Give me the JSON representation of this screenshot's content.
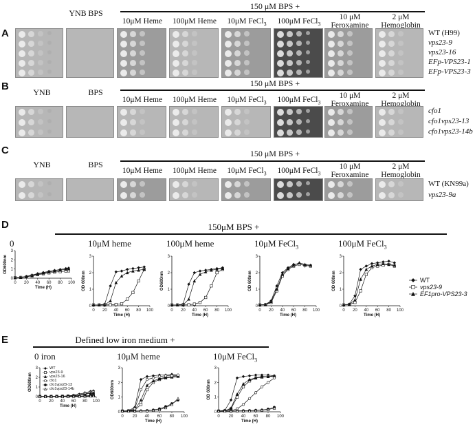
{
  "panels": {
    "A": {
      "letter": "A",
      "header": "150  μM BPS +",
      "left_labels": [
        "YNB",
        "BPS"
      ],
      "conditions": [
        "10μM Heme",
        "100μM Heme",
        "10μM FeCl3",
        "100μM FeCl3",
        "10 μM Feroxamine",
        "2 μM Hemoglobin"
      ],
      "strains": [
        "WT (H99)",
        "vps23-9",
        "vps23-16",
        "EFp-VPS23-1",
        "EFp-VPS23-3"
      ]
    },
    "B": {
      "letter": "B",
      "header": "150  μM BPS +",
      "left_labels": [
        "YNB",
        "BPS"
      ],
      "conditions": [
        "10μM Heme",
        "100μM Heme",
        "10μM FeCl3",
        "100μM FeCl3",
        "10 μM Feroxamine",
        "2 μM Hemoglobin"
      ],
      "strains": [
        "cfo1",
        "cfo1vps23-13",
        "cfo1vps23-14b"
      ]
    },
    "C": {
      "letter": "C",
      "header": "150  μM BPS +",
      "left_labels": [
        "YNB",
        "BPS"
      ],
      "conditions": [
        "10μM Heme",
        "100μM Heme",
        "10μM FeCl3",
        "100μM FeCl3",
        "10 μM Feroxamine",
        "2 μM Hemoglobin"
      ],
      "strains": [
        "WT (KN99a)",
        "vps23-9a"
      ]
    },
    "D": {
      "letter": "D",
      "header": "150μM BPS +",
      "graph_titles": [
        "0",
        "10μM heme",
        "100μM heme",
        "10μM FeCl3",
        "100μM FeCl3"
      ],
      "legend": [
        "WT",
        "vps23-9",
        "EF1pro-VPS23-3"
      ],
      "xlabel": "Time (H)",
      "ylabel": "OD600nm",
      "ylabel_alt": "OD 600nm"
    },
    "E": {
      "letter": "E",
      "header": "Defined low iron medium +",
      "graph_titles": [
        "0 iron",
        "10μM heme",
        "10μM FeCl3"
      ],
      "legend": [
        "WT",
        "vps23-9",
        "vps23-16",
        "cfo1",
        "cfo1vps23-13",
        "cfo1vps23-14b"
      ],
      "xlabel": "Time (H)",
      "ylabel": "OD600nm",
      "ylabel_alt": "OD 600nm"
    }
  },
  "chart_data": [
    {
      "type": "line",
      "title": "0",
      "xlabel": "Time (H)",
      "ylabel": "OD600nm",
      "xlim": [
        0,
        100
      ],
      "ylim": [
        0,
        3
      ],
      "series": [
        {
          "name": "WT",
          "x": [
            0,
            10,
            20,
            30,
            40,
            50,
            60,
            70,
            80,
            90,
            95
          ],
          "y": [
            0.05,
            0.1,
            0.2,
            0.35,
            0.5,
            0.62,
            0.75,
            0.85,
            0.95,
            1.05,
            1.1
          ]
        },
        {
          "name": "vps23-9",
          "x": [
            0,
            10,
            20,
            30,
            40,
            50,
            60,
            70,
            80,
            90,
            95
          ],
          "y": [
            0.05,
            0.08,
            0.15,
            0.25,
            0.38,
            0.48,
            0.58,
            0.66,
            0.72,
            0.78,
            0.8
          ]
        },
        {
          "name": "EF1pro-VPS23-3",
          "x": [
            0,
            10,
            20,
            30,
            40,
            50,
            60,
            70,
            80,
            90,
            95
          ],
          "y": [
            0.05,
            0.1,
            0.18,
            0.3,
            0.45,
            0.56,
            0.68,
            0.78,
            0.88,
            0.98,
            1.02
          ]
        }
      ]
    },
    {
      "type": "line",
      "title": "10μM heme",
      "xlabel": "Time (H)",
      "ylabel": "OD 600nm",
      "xlim": [
        0,
        100
      ],
      "ylim": [
        0,
        3
      ],
      "series": [
        {
          "name": "WT",
          "x": [
            0,
            10,
            20,
            30,
            40,
            50,
            60,
            70,
            80,
            90
          ],
          "y": [
            0.05,
            0.05,
            0.1,
            1.2,
            2.05,
            2.1,
            2.2,
            2.25,
            2.3,
            2.35
          ]
        },
        {
          "name": "vps23-9",
          "x": [
            0,
            10,
            20,
            30,
            40,
            50,
            60,
            70,
            80,
            90
          ],
          "y": [
            0.05,
            0.05,
            0.05,
            0.06,
            0.08,
            0.12,
            0.4,
            0.8,
            1.5,
            2.2
          ]
        },
        {
          "name": "EF1pro-VPS23-3",
          "x": [
            0,
            10,
            20,
            30,
            40,
            50,
            60,
            70,
            80,
            90
          ],
          "y": [
            0.05,
            0.05,
            0.05,
            0.3,
            1.4,
            1.8,
            2.0,
            2.1,
            2.15,
            2.2
          ]
        }
      ]
    },
    {
      "type": "line",
      "title": "100μM heme",
      "xlabel": "Time (H)",
      "ylabel": "OD600nm",
      "xlim": [
        0,
        100
      ],
      "ylim": [
        0,
        3
      ],
      "series": [
        {
          "name": "WT",
          "x": [
            0,
            10,
            20,
            30,
            40,
            50,
            60,
            70,
            80,
            90
          ],
          "y": [
            0.05,
            0.05,
            0.1,
            1.3,
            2.0,
            2.1,
            2.15,
            2.2,
            2.25,
            2.3
          ]
        },
        {
          "name": "vps23-9",
          "x": [
            0,
            10,
            20,
            30,
            40,
            50,
            60,
            70,
            80,
            90
          ],
          "y": [
            0.05,
            0.05,
            0.05,
            0.06,
            0.1,
            0.2,
            0.5,
            1.2,
            2.0,
            2.2
          ]
        },
        {
          "name": "EF1pro-VPS23-3",
          "x": [
            0,
            10,
            20,
            30,
            40,
            50,
            60,
            70,
            80,
            90
          ],
          "y": [
            0.05,
            0.05,
            0.05,
            0.4,
            1.5,
            1.9,
            2.05,
            2.15,
            2.2,
            2.25
          ]
        }
      ]
    },
    {
      "type": "line",
      "title": "10μM FeCl3",
      "xlabel": "Time (H)",
      "ylabel": "OD 600nm",
      "xlim": [
        0,
        100
      ],
      "ylim": [
        0,
        3
      ],
      "series": [
        {
          "name": "WT",
          "x": [
            0,
            10,
            20,
            30,
            40,
            50,
            60,
            70,
            80,
            90
          ],
          "y": [
            0.05,
            0.08,
            0.3,
            1.2,
            2.0,
            2.3,
            2.5,
            2.55,
            2.4,
            2.45
          ]
        },
        {
          "name": "vps23-9",
          "x": [
            0,
            10,
            20,
            30,
            40,
            50,
            60,
            70,
            80,
            90
          ],
          "y": [
            0.05,
            0.06,
            0.2,
            0.9,
            1.8,
            2.2,
            2.4,
            2.5,
            2.45,
            2.4
          ]
        },
        {
          "name": "EF1pro-VPS23-3",
          "x": [
            0,
            10,
            20,
            30,
            40,
            50,
            60,
            70,
            80,
            90
          ],
          "y": [
            0.05,
            0.07,
            0.25,
            1.0,
            1.9,
            2.25,
            2.45,
            2.6,
            2.5,
            2.45
          ]
        }
      ]
    },
    {
      "type": "line",
      "title": "100μM FeCl3",
      "xlabel": "Time (H)",
      "ylabel": "OD 600nm",
      "xlim": [
        0,
        100
      ],
      "ylim": [
        0,
        3
      ],
      "series": [
        {
          "name": "WT",
          "x": [
            0,
            10,
            20,
            30,
            40,
            50,
            60,
            70,
            80,
            90
          ],
          "y": [
            0.05,
            0.1,
            0.6,
            2.2,
            2.4,
            2.55,
            2.6,
            2.65,
            2.7,
            2.6
          ]
        },
        {
          "name": "vps23-9",
          "x": [
            0,
            10,
            20,
            30,
            40,
            50,
            60,
            70,
            80,
            90
          ],
          "y": [
            0.05,
            0.07,
            0.2,
            0.9,
            1.9,
            2.3,
            2.4,
            2.45,
            2.5,
            2.4
          ]
        },
        {
          "name": "EF1pro-VPS23-3",
          "x": [
            0,
            10,
            20,
            30,
            40,
            50,
            60,
            70,
            80,
            90
          ],
          "y": [
            0.05,
            0.08,
            0.35,
            1.6,
            2.2,
            2.4,
            2.5,
            2.55,
            2.5,
            2.45
          ]
        }
      ]
    },
    {
      "type": "line",
      "title": "0 iron",
      "xlabel": "Time (H)",
      "ylabel": "OD600nm",
      "xlim": [
        0,
        100
      ],
      "ylim": [
        0,
        3
      ],
      "series": [
        {
          "name": "WT",
          "x": [
            0,
            10,
            20,
            30,
            40,
            50,
            60,
            70,
            80,
            90,
            95
          ],
          "y": [
            0.02,
            0.02,
            0.03,
            0.03,
            0.05,
            0.08,
            0.15,
            0.25,
            0.4,
            0.55,
            0.6
          ]
        },
        {
          "name": "vps23-9",
          "x": [
            0,
            10,
            20,
            30,
            40,
            50,
            60,
            70,
            80,
            90,
            95
          ],
          "y": [
            0.02,
            0.02,
            0.02,
            0.03,
            0.04,
            0.06,
            0.1,
            0.18,
            0.3,
            0.42,
            0.48
          ]
        },
        {
          "name": "vps23-16",
          "x": [
            0,
            10,
            20,
            30,
            40,
            50,
            60,
            70,
            80,
            90,
            95
          ],
          "y": [
            0.02,
            0.02,
            0.02,
            0.03,
            0.04,
            0.05,
            0.08,
            0.14,
            0.24,
            0.36,
            0.4
          ]
        },
        {
          "name": "cfo1",
          "x": [
            0,
            10,
            20,
            30,
            40,
            50,
            60,
            70,
            80,
            90,
            95
          ],
          "y": [
            0.02,
            0.02,
            0.02,
            0.02,
            0.03,
            0.03,
            0.04,
            0.05,
            0.08,
            0.12,
            0.15
          ]
        },
        {
          "name": "cfo1vps23-13",
          "x": [
            0,
            10,
            20,
            30,
            40,
            50,
            60,
            70,
            80,
            90,
            95
          ],
          "y": [
            0.02,
            0.02,
            0.02,
            0.02,
            0.02,
            0.03,
            0.03,
            0.04,
            0.06,
            0.09,
            0.1
          ]
        },
        {
          "name": "cfo1vps23-14b",
          "x": [
            0,
            10,
            20,
            30,
            40,
            50,
            60,
            70,
            80,
            90,
            95
          ],
          "y": [
            0.02,
            0.02,
            0.02,
            0.02,
            0.02,
            0.02,
            0.03,
            0.03,
            0.05,
            0.07,
            0.08
          ]
        }
      ]
    },
    {
      "type": "line",
      "title": "10μM heme",
      "xlabel": "Time (H)",
      "ylabel": "OD600nm",
      "xlim": [
        0,
        100
      ],
      "ylim": [
        0,
        3
      ],
      "series": [
        {
          "name": "WT",
          "x": [
            0,
            10,
            20,
            30,
            40,
            50,
            60,
            70,
            80,
            90
          ],
          "y": [
            0.05,
            0.08,
            0.3,
            2.2,
            2.4,
            2.45,
            2.5,
            2.5,
            2.55,
            2.5
          ]
        },
        {
          "name": "vps23-9",
          "x": [
            0,
            10,
            20,
            30,
            40,
            50,
            60,
            70,
            80,
            90
          ],
          "y": [
            0.05,
            0.06,
            0.1,
            0.5,
            1.5,
            2.0,
            2.2,
            2.3,
            2.35,
            2.4
          ]
        },
        {
          "name": "vps23-16",
          "x": [
            0,
            10,
            20,
            30,
            40,
            50,
            60,
            70,
            80,
            90
          ],
          "y": [
            0.05,
            0.06,
            0.12,
            0.8,
            1.8,
            2.1,
            2.25,
            2.35,
            2.4,
            2.45
          ]
        },
        {
          "name": "cfo1",
          "x": [
            0,
            10,
            20,
            30,
            40,
            50,
            60,
            70,
            80,
            90
          ],
          "y": [
            0.05,
            0.06,
            0.2,
            1.5,
            2.2,
            2.3,
            2.4,
            2.45,
            2.45,
            2.5
          ]
        },
        {
          "name": "cfo1vps23-13",
          "x": [
            0,
            10,
            20,
            30,
            40,
            50,
            60,
            70,
            80,
            90
          ],
          "y": [
            0.05,
            0.05,
            0.05,
            0.06,
            0.08,
            0.12,
            0.2,
            0.35,
            0.55,
            0.8
          ]
        },
        {
          "name": "cfo1vps23-14b",
          "x": [
            0,
            10,
            20,
            30,
            40,
            50,
            60,
            70,
            80,
            90
          ],
          "y": [
            0.05,
            0.05,
            0.05,
            0.06,
            0.07,
            0.1,
            0.15,
            0.28,
            0.5,
            0.9
          ]
        }
      ]
    },
    {
      "type": "line",
      "title": "10μM FeCl3",
      "xlabel": "Time (H)",
      "ylabel": "OD 600nm",
      "xlim": [
        0,
        100
      ],
      "ylim": [
        0,
        3
      ],
      "series": [
        {
          "name": "WT",
          "x": [
            0,
            10,
            20,
            30,
            40,
            50,
            60,
            70,
            80,
            90
          ],
          "y": [
            0.05,
            0.1,
            0.8,
            2.3,
            2.4,
            2.45,
            2.5,
            2.5,
            2.5,
            2.45
          ]
        },
        {
          "name": "vps23-9",
          "x": [
            0,
            10,
            20,
            30,
            40,
            50,
            60,
            70,
            80,
            90
          ],
          "y": [
            0.05,
            0.06,
            0.2,
            1.0,
            1.7,
            2.1,
            2.3,
            2.35,
            2.4,
            2.4
          ]
        },
        {
          "name": "vps23-16",
          "x": [
            0,
            10,
            20,
            30,
            40,
            50,
            60,
            70,
            80,
            90
          ],
          "y": [
            0.05,
            0.06,
            0.25,
            1.2,
            1.9,
            2.2,
            2.3,
            2.4,
            2.4,
            2.45
          ]
        },
        {
          "name": "cfo1",
          "x": [
            0,
            10,
            20,
            30,
            40,
            50,
            60,
            70,
            80,
            90
          ],
          "y": [
            0.05,
            0.05,
            0.08,
            0.2,
            0.5,
            0.9,
            1.3,
            1.7,
            2.0,
            2.3
          ]
        },
        {
          "name": "cfo1vps23-13",
          "x": [
            0,
            10,
            20,
            30,
            40,
            50,
            60,
            70,
            80,
            90
          ],
          "y": [
            0.05,
            0.05,
            0.05,
            0.06,
            0.07,
            0.08,
            0.1,
            0.12,
            0.18,
            0.3
          ]
        },
        {
          "name": "cfo1vps23-14b",
          "x": [
            0,
            10,
            20,
            30,
            40,
            50,
            60,
            70,
            80,
            90
          ],
          "y": [
            0.05,
            0.05,
            0.05,
            0.06,
            0.06,
            0.07,
            0.09,
            0.11,
            0.15,
            0.25
          ]
        }
      ]
    }
  ]
}
